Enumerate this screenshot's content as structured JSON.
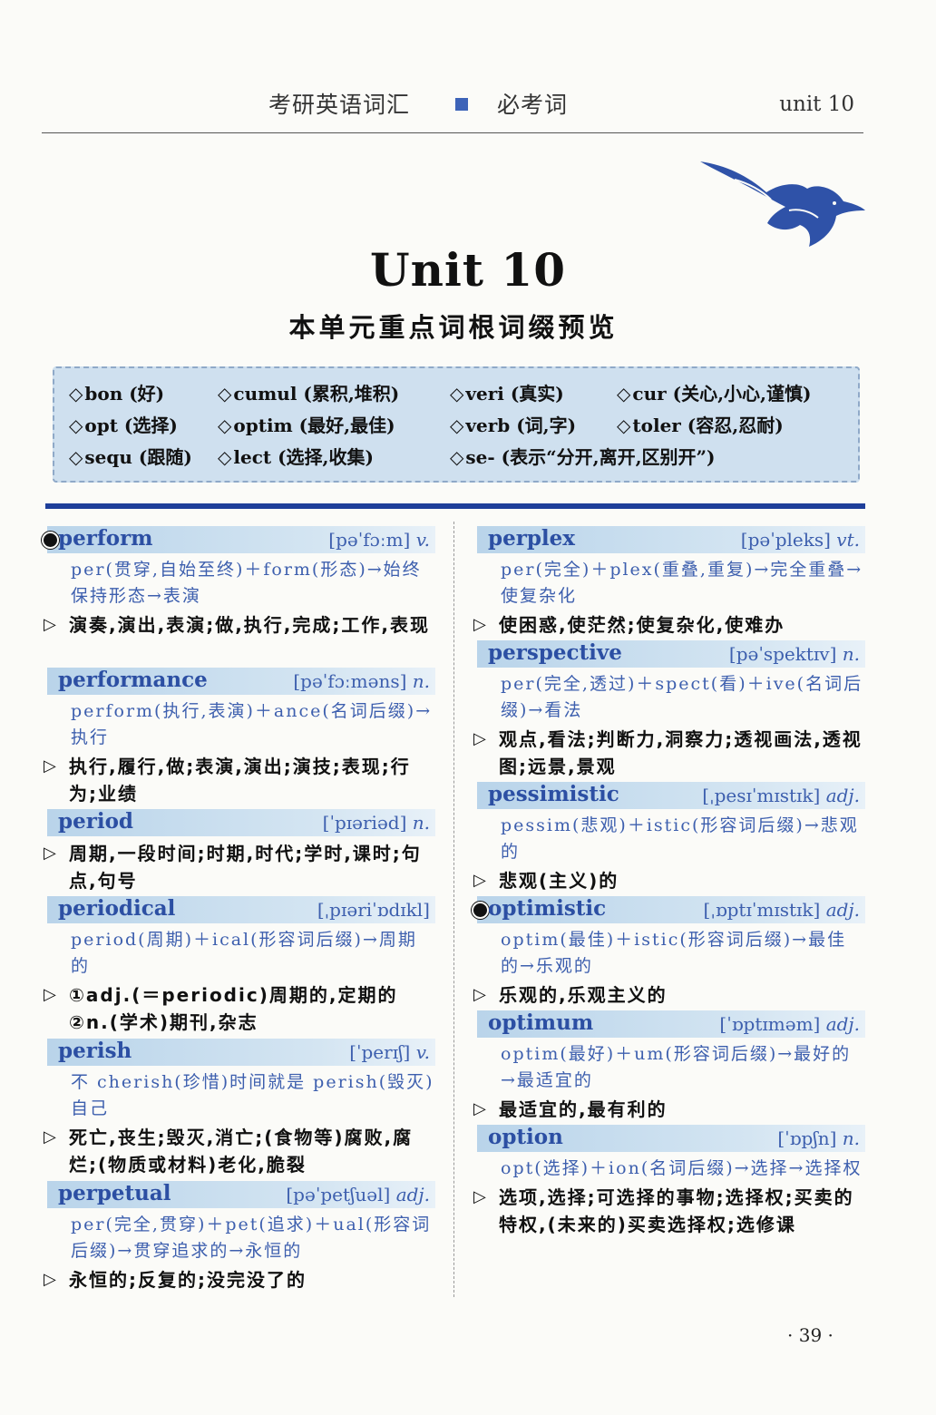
{
  "header": {
    "title": "考研英语词汇",
    "subtitle": "必考词",
    "unit": "unit 10"
  },
  "unit_title": "Unit  10",
  "unit_subtitle": "本单元重点词根词缀预览",
  "roots": [
    "bon (好)",
    "cumul (累积,堆积)",
    "veri (真实)",
    "cur (关心,小心,谨慎)",
    "opt (选择)",
    "optim (最好,最佳)",
    "verb (词,字)",
    "toler (容忍,忍耐)",
    "sequ (跟随)",
    "lect (选择,收集)",
    "se- (表示“分开,离开,区别开”)"
  ],
  "entries_left": [
    {
      "word": "perform",
      "pron": "[pəˈfɔːm]",
      "pos": "v.",
      "etym": "per(贯穿,自始至终)＋form(形态)→始终保持形态→表演",
      "def": "演奏,演出,表演;做,执行,完成;工作,表现"
    },
    {
      "word": "performance",
      "pron": "[pəˈfɔːməns]",
      "pos": "n.",
      "etym": "perform(执行,表演)＋ance(名词后缀)→执行",
      "def": "执行,履行,做;表演,演出;演技;表现;行为;业绩"
    },
    {
      "word": "period",
      "pron": "[ˈpɪəriəd]",
      "pos": "n.",
      "etym": "",
      "def": "周期,一段时间;时期,时代;学时,课时;句点,句号"
    },
    {
      "word": "periodical",
      "pron": "[ˌpɪəriˈɒdɪkl]",
      "pos": "",
      "etym": "period(周期)＋ical(形容词后缀)→周期的",
      "def": "①adj.(＝periodic)周期的,定期的 ②n.(学术)期刊,杂志"
    },
    {
      "word": "perish",
      "pron": "[ˈperɪʃ]",
      "pos": "v.",
      "etym": "不 cherish(珍惜)时间就是 perish(毁灭)自己",
      "def": "死亡,丧生;毁灭,消亡;(食物等)腐败,腐烂;(物质或材料)老化,脆裂"
    },
    {
      "word": "perpetual",
      "pron": "[pəˈpetʃuəl]",
      "pos": "adj.",
      "etym": "per(完全,贯穿)＋pet(追求)＋ual(形容词后缀)→贯穿追求的→永恒的",
      "def": "永恒的;反复的;没完没了的"
    }
  ],
  "entries_right": [
    {
      "word": "perplex",
      "pron": "[pəˈpleks]",
      "pos": "vt.",
      "etym": "per(完全)＋plex(重叠,重复)→完全重叠→使复杂化",
      "def": "使困惑,使茫然;使复杂化,使难办"
    },
    {
      "word": "perspective",
      "pron": "[pəˈspektɪv]",
      "pos": "n.",
      "etym": "per(完全,透过)＋spect(看)＋ive(名词后缀)→看法",
      "def": "观点,看法;判断力,洞察力;透视画法,透视图;远景,景观"
    },
    {
      "word": "pessimistic",
      "pron": "[ˌpesɪˈmɪstɪk]",
      "pos": "adj.",
      "etym": "pessim(悲观)＋istic(形容词后缀)→悲观的",
      "def": "悲观(主义)的"
    },
    {
      "word": "optimistic",
      "pron": "[ˌɒptɪˈmɪstɪk]",
      "pos": "adj.",
      "etym": "optim(最佳)＋istic(形容词后缀)→最佳的→乐观的",
      "def": "乐观的,乐观主义的"
    },
    {
      "word": "optimum",
      "pron": "[ˈɒptɪməm]",
      "pos": "adj.",
      "etym": "optim(最好)＋um(形容词后缀)→最好的→最适宜的",
      "def": "最适宜的,最有利的"
    },
    {
      "word": "option",
      "pron": "[ˈɒpʃn]",
      "pos": "n.",
      "etym": "opt(选择)＋ion(名词后缀)→选择→选择权",
      "def": "选项,选择;可选择的事物;选择权;买卖的特权,(未来的)买卖选择权;选修课"
    }
  ],
  "page_number": "· 39 ·",
  "colors": {
    "accent_blue": "#1e3f9a",
    "headword_blue": "#2c4fa3",
    "band_blue": "#b9d4ea"
  }
}
